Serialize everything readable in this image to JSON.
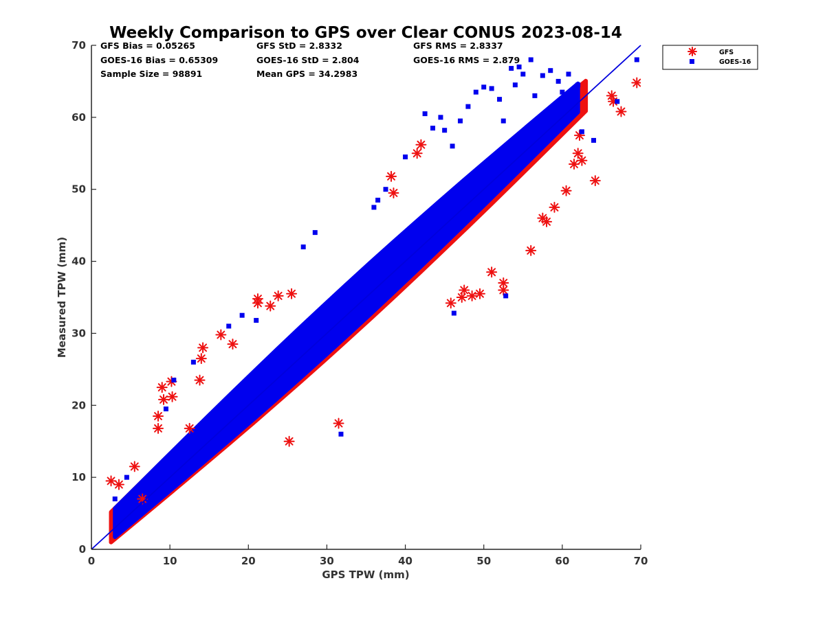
{
  "chart_data": {
    "type": "scatter",
    "title": "Weekly Comparison to GPS over Clear CONUS 2023-08-14",
    "xlabel": "GPS TPW (mm)",
    "ylabel": "Measured TPW (mm)",
    "xlim": [
      0,
      70
    ],
    "ylim": [
      0,
      70
    ],
    "xticks": [
      0,
      10,
      20,
      30,
      40,
      50,
      60,
      70
    ],
    "yticks": [
      0,
      10,
      20,
      30,
      40,
      50,
      60,
      70
    ],
    "grid": false,
    "legend_position": "outside-top-right",
    "reference_line": {
      "name": "1:1 line",
      "from": [
        0,
        0
      ],
      "to": [
        70,
        70
      ],
      "color": "#0000dd"
    },
    "stats": [
      [
        "GFS Bias = 0.05265",
        "GFS StD = 2.8332",
        "GFS RMS = 2.8337"
      ],
      [
        "GOES-16 Bias = 0.65309",
        "GOES-16 StD = 2.804",
        "GOES-16 RMS = 2.879"
      ],
      [
        "Sample Size = 98891",
        "Mean GPS = 34.2983",
        ""
      ]
    ],
    "series": [
      {
        "name": "GFS",
        "marker": "asterisk",
        "color": "#ee1111",
        "density_band": {
          "x_min": 2.5,
          "x_max": 63,
          "slope": 0.99,
          "intercept": 0.6,
          "half_width": 3.8
        },
        "points": [
          [
            2.5,
            9.5
          ],
          [
            3.5,
            9.0
          ],
          [
            5.5,
            11.5
          ],
          [
            6.5,
            7.0
          ],
          [
            8.5,
            18.5
          ],
          [
            8.5,
            16.8
          ],
          [
            9.0,
            22.5
          ],
          [
            9.2,
            20.8
          ],
          [
            10.2,
            23.3
          ],
          [
            10.3,
            21.2
          ],
          [
            12.5,
            16.8
          ],
          [
            13.8,
            23.5
          ],
          [
            14.2,
            28.0
          ],
          [
            14.0,
            26.5
          ],
          [
            16.5,
            29.8
          ],
          [
            18.0,
            28.5
          ],
          [
            21.2,
            34.8
          ],
          [
            21.2,
            34.2
          ],
          [
            22.8,
            33.8
          ],
          [
            25.2,
            15.0
          ],
          [
            23.8,
            35.2
          ],
          [
            25.5,
            35.5
          ],
          [
            31.5,
            17.5
          ],
          [
            38.2,
            51.8
          ],
          [
            38.5,
            49.5
          ],
          [
            41.5,
            55.0
          ],
          [
            42.0,
            56.2
          ],
          [
            45.8,
            34.2
          ],
          [
            47.2,
            35.0
          ],
          [
            47.5,
            36.0
          ],
          [
            48.5,
            35.2
          ],
          [
            49.5,
            35.5
          ],
          [
            51.0,
            38.5
          ],
          [
            52.5,
            37.0
          ],
          [
            52.5,
            36.0
          ],
          [
            56.0,
            41.5
          ],
          [
            57.5,
            46.0
          ],
          [
            58.0,
            45.5
          ],
          [
            59.0,
            47.5
          ],
          [
            60.5,
            49.8
          ],
          [
            61.5,
            53.5
          ],
          [
            62.0,
            55.0
          ],
          [
            62.5,
            54.0
          ],
          [
            62.2,
            57.5
          ],
          [
            64.2,
            51.2
          ],
          [
            66.3,
            63.0
          ],
          [
            66.5,
            62.2
          ],
          [
            67.5,
            60.8
          ],
          [
            69.5,
            64.8
          ]
        ]
      },
      {
        "name": "GOES-16",
        "marker": "square",
        "color": "#0000ee",
        "density_band": {
          "x_min": 3,
          "x_max": 62,
          "slope": 1.0,
          "intercept": 0.7,
          "half_width": 3.6
        },
        "points": [
          [
            3.0,
            7.0
          ],
          [
            4.0,
            6.5
          ],
          [
            4.5,
            10.0
          ],
          [
            9.5,
            19.5
          ],
          [
            10.5,
            23.5
          ],
          [
            13.0,
            26.0
          ],
          [
            17.5,
            31.0
          ],
          [
            19.2,
            32.5
          ],
          [
            21.0,
            31.8
          ],
          [
            27.0,
            42.0
          ],
          [
            28.5,
            44.0
          ],
          [
            31.8,
            16.0
          ],
          [
            36.0,
            47.5
          ],
          [
            36.5,
            48.5
          ],
          [
            37.5,
            50.0
          ],
          [
            40.0,
            54.5
          ],
          [
            42.5,
            60.5
          ],
          [
            43.5,
            58.5
          ],
          [
            44.5,
            60.0
          ],
          [
            45.0,
            58.2
          ],
          [
            46.0,
            56.0
          ],
          [
            46.2,
            32.8
          ],
          [
            47.0,
            59.5
          ],
          [
            48.0,
            61.5
          ],
          [
            49.0,
            63.5
          ],
          [
            50.0,
            64.2
          ],
          [
            51.0,
            64.0
          ],
          [
            52.0,
            62.5
          ],
          [
            52.5,
            59.5
          ],
          [
            52.8,
            35.2
          ],
          [
            53.5,
            66.8
          ],
          [
            54.0,
            64.5
          ],
          [
            54.5,
            67.0
          ],
          [
            55.0,
            66.0
          ],
          [
            56.0,
            68.0
          ],
          [
            56.5,
            63.0
          ],
          [
            57.5,
            65.8
          ],
          [
            58.5,
            66.5
          ],
          [
            59.5,
            65.0
          ],
          [
            60.0,
            63.5
          ],
          [
            60.8,
            66.0
          ],
          [
            61.5,
            62.0
          ],
          [
            62.0,
            64.5
          ],
          [
            62.5,
            58.0
          ],
          [
            64.0,
            56.8
          ],
          [
            67.0,
            62.2
          ],
          [
            69.5,
            68.0
          ]
        ]
      }
    ]
  }
}
